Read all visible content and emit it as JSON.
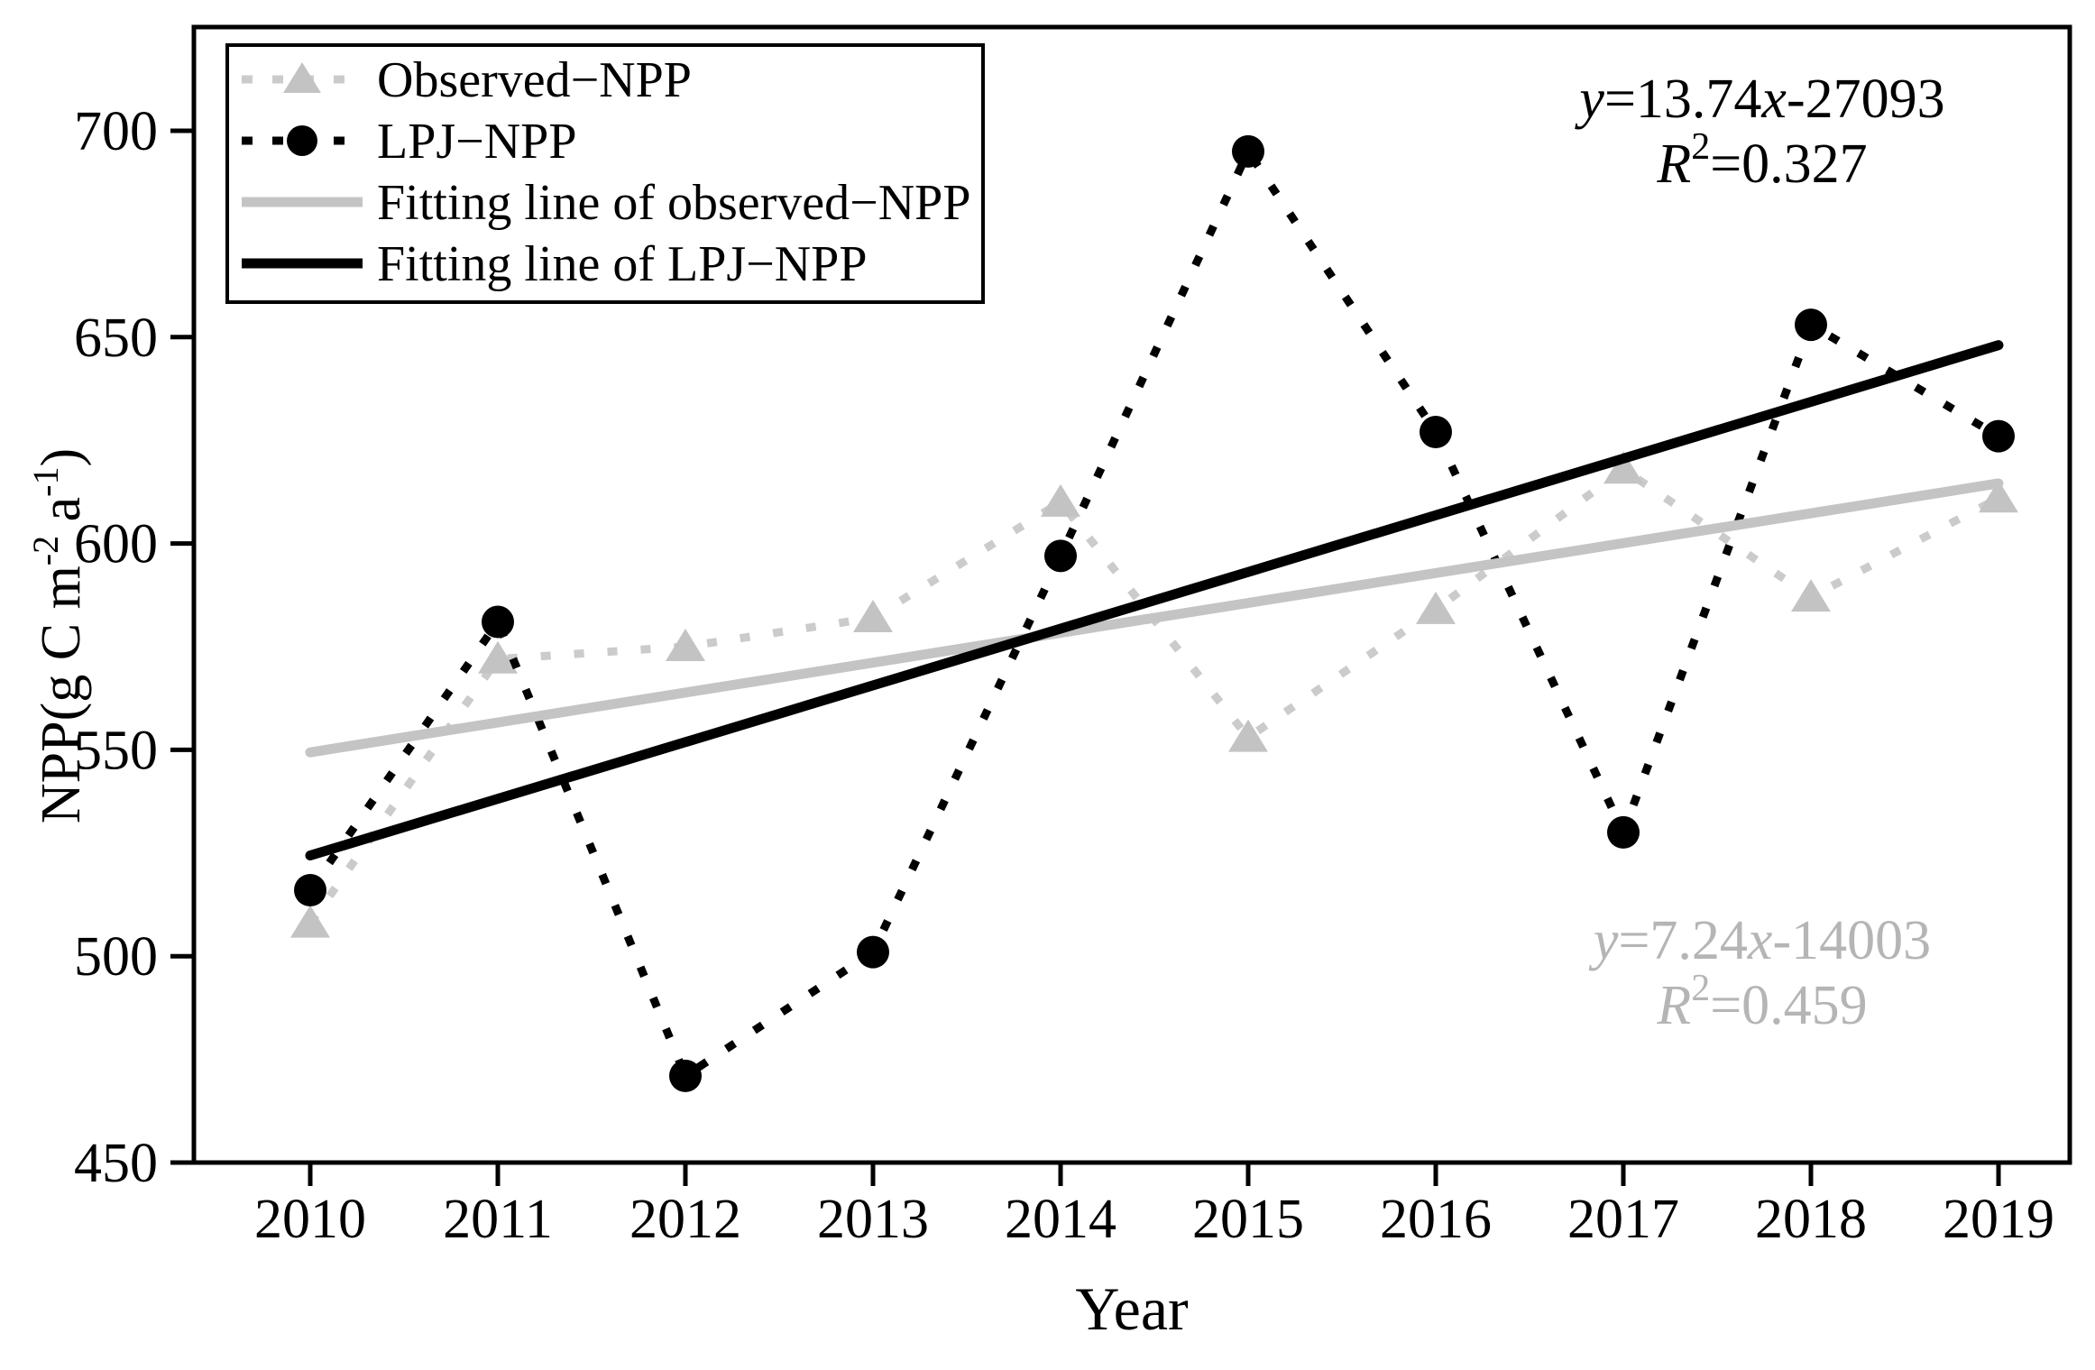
{
  "colors": {
    "black": "#000000",
    "gray_marker": "#c3c3c3",
    "gray_dotted": "#cbcbcb",
    "gray_fit": "#c4c4c4",
    "gray_text": "#b5b5b5",
    "frame": "#000000",
    "background": "#ffffff"
  },
  "axes": {
    "x": {
      "title": "Year",
      "ticks": [
        2010,
        2011,
        2012,
        2013,
        2014,
        2015,
        2016,
        2017,
        2018,
        2019
      ]
    },
    "y": {
      "title_parts": [
        {
          "t": "NPP(g C m"
        },
        {
          "t": "-2",
          "sup": 1
        },
        {
          "t": " a",
          "sup": 0
        },
        {
          "t": "-1",
          "sup": 1
        },
        {
          "t": ")",
          "sup": 0
        }
      ],
      "ticks": [
        450,
        500,
        550,
        600,
        650,
        700
      ]
    }
  },
  "legend": {
    "items": [
      {
        "label": "Observed−NPP",
        "marker": "triangle",
        "line": "dotted",
        "color_key": "gray"
      },
      {
        "label": "LPJ−NPP",
        "marker": "circle",
        "line": "dotted",
        "color_key": "black"
      },
      {
        "label": "Fitting line of observed−NPP",
        "marker": "none",
        "line": "solid",
        "color_key": "gray"
      },
      {
        "label": "Fitting line of LPJ−NPP",
        "marker": "none",
        "line": "solid",
        "color_key": "black"
      }
    ]
  },
  "annotations": [
    {
      "name": "lpj-equation",
      "color_key": "black",
      "lines": [
        [
          {
            "t": "y",
            "i": 1
          },
          {
            "t": "=13.74"
          },
          {
            "t": "x",
            "i": 1
          },
          {
            "t": "-27093"
          }
        ],
        [
          {
            "t": "R",
            "i": 1
          },
          {
            "t": "2",
            "sup": 1
          },
          {
            "t": "=0.327"
          }
        ]
      ]
    },
    {
      "name": "observed-equation",
      "color_key": "gray_text",
      "lines": [
        [
          {
            "t": "y",
            "i": 1
          },
          {
            "t": "=7.24"
          },
          {
            "t": "x",
            "i": 1
          },
          {
            "t": "-14003"
          }
        ],
        [
          {
            "t": "R",
            "i": 1
          },
          {
            "t": "2",
            "sup": 1
          },
          {
            "t": "=0.459"
          }
        ]
      ]
    }
  ],
  "chart_data": {
    "type": "line",
    "title": "",
    "xlabel": "Year",
    "ylabel": "NPP(g C m-2 a-1)",
    "x": [
      2010,
      2011,
      2012,
      2013,
      2014,
      2015,
      2016,
      2017,
      2018,
      2019
    ],
    "xlim": [
      2009.4,
      2019.3
    ],
    "ylim": [
      450,
      700
    ],
    "grid": false,
    "legend_position": "top-left",
    "series": [
      {
        "name": "Observed−NPP",
        "marker": "triangle",
        "line": "dotted",
        "color_key": "gray",
        "values": [
          508,
          572,
          575,
          582,
          610,
          553,
          584,
          618,
          587,
          611
        ]
      },
      {
        "name": "LPJ−NPP",
        "marker": "circle",
        "line": "dotted",
        "color_key": "black",
        "values": [
          516,
          581,
          471,
          501,
          597,
          695,
          627,
          530,
          653,
          626
        ]
      }
    ],
    "fit_lines": [
      {
        "name": "Fitting line of observed−NPP",
        "slope": 7.24,
        "intercept": -14003,
        "r_squared": 0.459,
        "color_key": "gray"
      },
      {
        "name": "Fitting line of LPJ−NPP",
        "slope": 13.74,
        "intercept": -27093,
        "r_squared": 0.327,
        "color_key": "black"
      }
    ]
  }
}
